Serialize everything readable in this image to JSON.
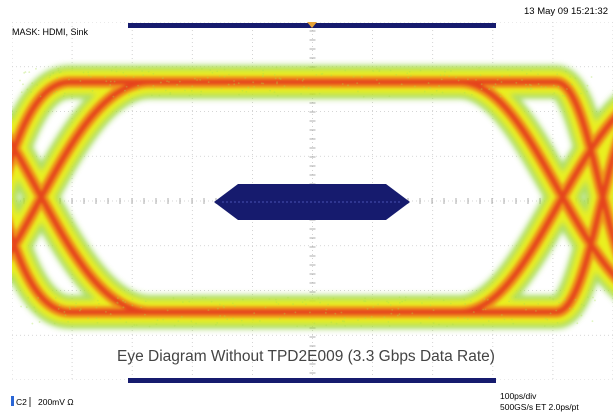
{
  "header": {
    "timestamp": "13 May 09 15:21:32",
    "mask_label": "MASK: HDMI, Sink"
  },
  "caption": "Eye Diagram Without TPD2E009 (3.3 Gbps Data Rate)",
  "status": {
    "channel": "C2",
    "volts_per_div": "200mV Ω",
    "time_per_div": "100ps/div",
    "sample_rate": "500GS/s ET 2.0ps/pt"
  },
  "colors": {
    "mask": "#161b6e",
    "trigger_marker": "#e7a43a",
    "channel_marker": "#2a66d6",
    "eye_outer": "#8fd23a",
    "eye_mid": "#eef01a",
    "eye_hot": "#f08a1e",
    "eye_core": "#e43a1a"
  },
  "icons": {
    "trigger": "trigger-marker-icon",
    "channel": "channel-marker-icon"
  }
}
